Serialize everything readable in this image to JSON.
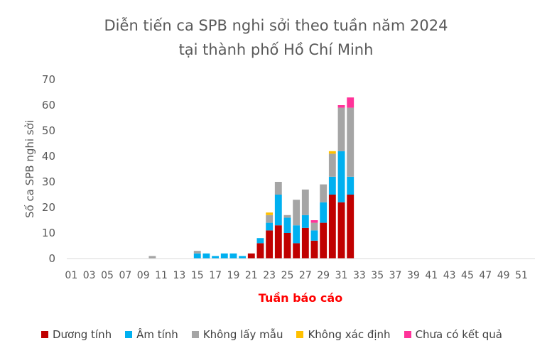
{
  "chart_data": {
    "type": "bar",
    "stacked": true,
    "title": "Diễn tiến ca SPB nghi sởi theo tuần năm 2024",
    "subtitle": "tại thành phố Hồ Chí Minh",
    "xlabel": "Tuần báo cáo",
    "ylabel": "Số ca SPB nghi sởi",
    "ylim": [
      0,
      70
    ],
    "yticks": [
      0,
      10,
      20,
      30,
      40,
      50,
      60,
      70
    ],
    "grid": false,
    "legend_position": "bottom",
    "x_tick_labels": [
      "01",
      "03",
      "05",
      "07",
      "09",
      "11",
      "13",
      "15",
      "17",
      "19",
      "21",
      "23",
      "25",
      "27",
      "29",
      "31",
      "33",
      "35",
      "37",
      "39",
      "41",
      "43",
      "45",
      "47",
      "49",
      "51"
    ],
    "categories": [
      "01",
      "02",
      "03",
      "04",
      "05",
      "06",
      "07",
      "08",
      "09",
      "10",
      "11",
      "12",
      "13",
      "14",
      "15",
      "16",
      "17",
      "18",
      "19",
      "20",
      "21",
      "22",
      "23",
      "24",
      "25",
      "26",
      "27",
      "28",
      "29",
      "30",
      "31",
      "32",
      "33",
      "34",
      "35",
      "36",
      "37",
      "38",
      "39",
      "40",
      "41",
      "42",
      "43",
      "44",
      "45",
      "46",
      "47",
      "48",
      "49",
      "50",
      "51",
      "52"
    ],
    "series": [
      {
        "name": "Dương tính",
        "color": "#C00000",
        "values": [
          0,
          0,
          0,
          0,
          0,
          0,
          0,
          0,
          0,
          0,
          0,
          0,
          0,
          0,
          0,
          0,
          0,
          0,
          0,
          0,
          2,
          6,
          11,
          13,
          10,
          6,
          12,
          7,
          14,
          25,
          22,
          25,
          0,
          0,
          0,
          0,
          0,
          0,
          0,
          0,
          0,
          0,
          0,
          0,
          0,
          0,
          0,
          0,
          0,
          0,
          0,
          0
        ]
      },
      {
        "name": "Âm tính",
        "color": "#00B0F0",
        "values": [
          0,
          0,
          0,
          0,
          0,
          0,
          0,
          0,
          0,
          0,
          0,
          0,
          0,
          0,
          2,
          2,
          1,
          2,
          2,
          1,
          0,
          2,
          3,
          12,
          6,
          7,
          5,
          4,
          8,
          7,
          20,
          7,
          0,
          0,
          0,
          0,
          0,
          0,
          0,
          0,
          0,
          0,
          0,
          0,
          0,
          0,
          0,
          0,
          0,
          0,
          0,
          0
        ]
      },
      {
        "name": "Không lấy mẫu",
        "color": "#A5A5A5",
        "values": [
          0,
          0,
          0,
          0,
          0,
          0,
          0,
          0,
          0,
          1,
          0,
          0,
          0,
          0,
          1,
          0,
          0,
          0,
          0,
          0,
          0,
          0,
          3,
          5,
          1,
          10,
          10,
          3,
          7,
          9,
          17,
          27,
          0,
          0,
          0,
          0,
          0,
          0,
          0,
          0,
          0,
          0,
          0,
          0,
          0,
          0,
          0,
          0,
          0,
          0,
          0,
          0
        ]
      },
      {
        "name": "Không xác định",
        "color": "#FFC000",
        "values": [
          0,
          0,
          0,
          0,
          0,
          0,
          0,
          0,
          0,
          0,
          0,
          0,
          0,
          0,
          0,
          0,
          0,
          0,
          0,
          0,
          0,
          0,
          1,
          0,
          0,
          0,
          0,
          0,
          0,
          1,
          0,
          0,
          0,
          0,
          0,
          0,
          0,
          0,
          0,
          0,
          0,
          0,
          0,
          0,
          0,
          0,
          0,
          0,
          0,
          0,
          0,
          0
        ]
      },
      {
        "name": "Chưa có kết quả",
        "color": "#FF3399",
        "values": [
          0,
          0,
          0,
          0,
          0,
          0,
          0,
          0,
          0,
          0,
          0,
          0,
          0,
          0,
          0,
          0,
          0,
          0,
          0,
          0,
          0,
          0,
          0,
          0,
          0,
          0,
          0,
          1,
          0,
          0,
          1,
          4,
          0,
          0,
          0,
          0,
          0,
          0,
          0,
          0,
          0,
          0,
          0,
          0,
          0,
          0,
          0,
          0,
          0,
          0,
          0,
          0
        ]
      }
    ]
  }
}
